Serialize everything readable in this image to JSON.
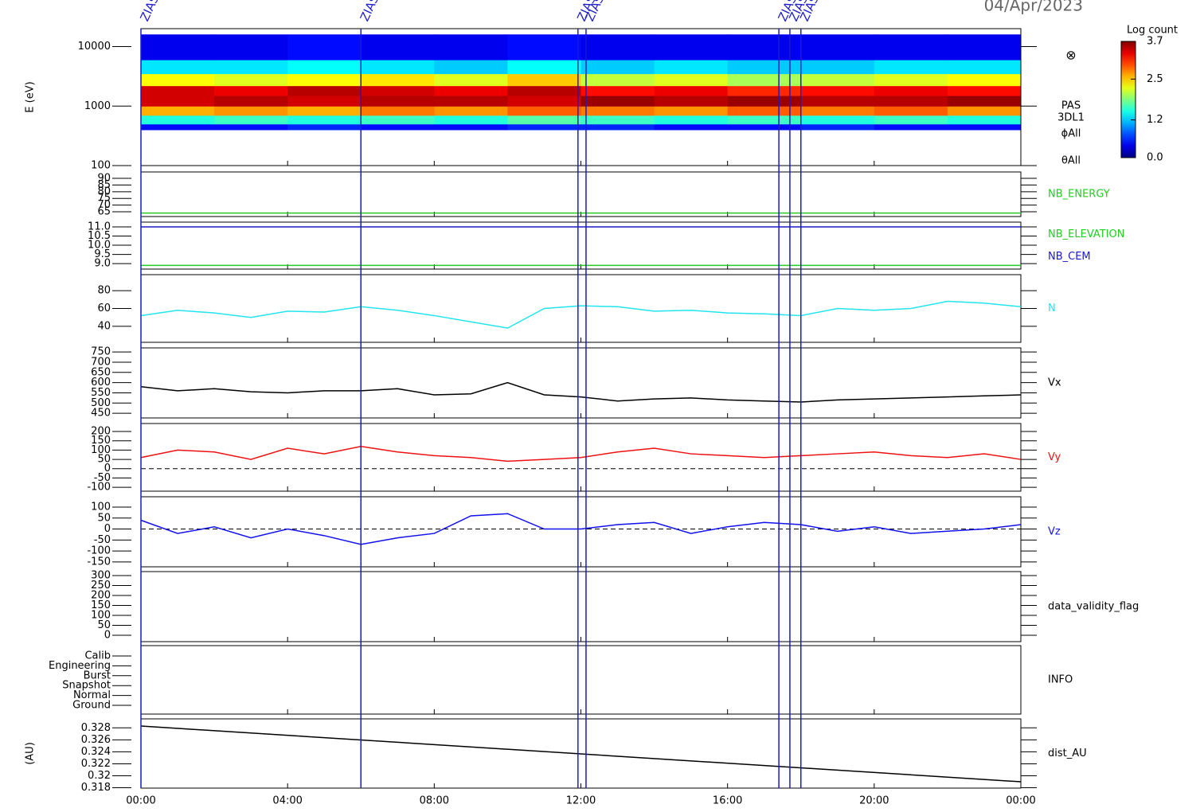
{
  "chart_data": [
    {
      "type": "heatmap",
      "date": "04/Apr/2023",
      "ylabel": "E (eV)",
      "log_y": true,
      "xlim": [
        0,
        24
      ],
      "ylim": [
        100,
        20000
      ],
      "yticks": [
        100,
        1000,
        10000
      ],
      "x_edges": [
        0,
        2,
        4,
        6,
        8,
        10,
        12,
        14,
        16,
        18,
        20,
        22,
        24
      ],
      "y_edges": [
        400,
        500,
        700,
        1000,
        1500,
        2200,
        3500,
        6000,
        16000
      ],
      "z": [
        [
          0.5,
          0.5,
          0.6,
          0.5,
          0.5,
          0.6,
          0.6,
          0.5,
          0.5,
          0.6,
          0.5,
          0.5
        ],
        [
          1.5,
          1.6,
          1.5,
          1.6,
          1.5,
          1.7,
          1.6,
          1.5,
          1.6,
          1.5,
          1.6,
          1.5
        ],
        [
          2.6,
          2.7,
          2.6,
          2.8,
          2.7,
          2.9,
          2.8,
          2.7,
          2.9,
          2.8,
          2.9,
          2.7
        ],
        [
          3.4,
          3.5,
          3.4,
          3.5,
          3.5,
          3.4,
          3.6,
          3.5,
          3.6,
          3.5,
          3.5,
          3.6
        ],
        [
          3.4,
          3.3,
          3.5,
          3.4,
          3.3,
          3.5,
          3.2,
          3.3,
          3.1,
          3.2,
          3.3,
          3.2
        ],
        [
          2.3,
          2.2,
          2.3,
          2.4,
          2.2,
          2.5,
          2.1,
          2.2,
          2.0,
          2.1,
          2.2,
          2.3
        ],
        [
          1.3,
          1.3,
          1.4,
          1.3,
          1.2,
          1.4,
          1.2,
          1.3,
          1.2,
          1.2,
          1.3,
          1.3
        ],
        [
          0.4,
          0.4,
          0.5,
          0.4,
          0.4,
          0.5,
          0.4,
          0.4,
          0.4,
          0.4,
          0.4,
          0.4
        ]
      ],
      "colorbar": {
        "label": "Log count",
        "zlim": [
          0,
          3.7
        ],
        "ticks": [
          {
            "value": 0,
            "label": "0.0"
          },
          1.2,
          2.5,
          3.7
        ]
      },
      "symbol": "⊗",
      "right_labels": [
        "PAS",
        "3DL1",
        "ϕAll",
        "θAll"
      ],
      "annotations": [
        {
          "x": 0,
          "label": "ZIAS"
        },
        {
          "x": 6.0,
          "label": "ZIAS"
        },
        {
          "x": 11.92,
          "label": "ZIAS"
        },
        {
          "x": 12.14,
          "label": "ZIAS"
        },
        {
          "x": 17.4,
          "label": "ZIAS"
        },
        {
          "x": 17.7,
          "label": "ZIAS"
        },
        {
          "x": 18.0,
          "label": "ZIAS"
        }
      ]
    },
    {
      "type": "line",
      "xlim": [
        0,
        24
      ],
      "ylim": [
        61.4,
        94.8
      ],
      "yticks": [
        65,
        70,
        75,
        80,
        85,
        90
      ],
      "x": [
        0,
        24
      ],
      "series": [
        {
          "name": "NB_ENERGY",
          "color": "#22cc22",
          "values": [
            64,
            64
          ]
        }
      ]
    },
    {
      "type": "line",
      "xlim": [
        0,
        24
      ],
      "ylim": [
        8.7,
        11.26
      ],
      "yticks": [
        {
          "value": 9,
          "label": "9.0"
        },
        9.5,
        {
          "value": 10,
          "label": "10.0"
        },
        10.5,
        {
          "value": 11,
          "label": "11.0"
        }
      ],
      "x": [
        0,
        24
      ],
      "series": [
        {
          "name": "NB_ELEVATION",
          "color": "#22cc22",
          "values": [
            8.9,
            8.9
          ]
        },
        {
          "name": "NB_CEM",
          "color": "#1a1acc",
          "values": [
            11.0,
            11.0
          ]
        }
      ]
    },
    {
      "type": "line",
      "xlim": [
        0,
        24
      ],
      "ylim": [
        22,
        98
      ],
      "yticks": [
        40,
        60,
        80
      ],
      "x": [
        0,
        1,
        2,
        3,
        4,
        5,
        6,
        7,
        8,
        9,
        10,
        11,
        12,
        13,
        14,
        15,
        16,
        17,
        18,
        19,
        20,
        21,
        22,
        23,
        24
      ],
      "series": [
        {
          "name": "N",
          "color": "#22e5ee",
          "values": [
            52,
            58,
            55,
            50,
            57,
            56,
            62,
            58,
            52,
            45,
            38,
            60,
            63,
            62,
            57,
            58,
            55,
            54,
            52,
            60,
            58,
            60,
            68,
            66,
            62
          ]
        }
      ]
    },
    {
      "type": "line",
      "xlim": [
        0,
        24
      ],
      "ylim": [
        427,
        770
      ],
      "yticks": [
        450,
        500,
        550,
        600,
        650,
        700,
        750
      ],
      "x": [
        0,
        1,
        2,
        3,
        4,
        5,
        6,
        7,
        8,
        9,
        10,
        11,
        12,
        13,
        14,
        15,
        16,
        17,
        18,
        19,
        20,
        21,
        22,
        23,
        24
      ],
      "series": [
        {
          "name": "Vx",
          "color": "#000000",
          "values": [
            580,
            560,
            570,
            555,
            550,
            560,
            560,
            570,
            540,
            545,
            600,
            540,
            530,
            510,
            520,
            525,
            515,
            510,
            505,
            515,
            520,
            525,
            530,
            535,
            540
          ]
        }
      ]
    },
    {
      "type": "line",
      "xlim": [
        0,
        24
      ],
      "ylim": [
        -121,
        243
      ],
      "yticks": [
        -100,
        -50,
        0,
        50,
        100,
        150,
        200
      ],
      "zero_line": true,
      "x": [
        0,
        1,
        2,
        3,
        4,
        5,
        6,
        7,
        8,
        9,
        10,
        11,
        12,
        13,
        14,
        15,
        16,
        17,
        18,
        19,
        20,
        21,
        22,
        23,
        24
      ],
      "series": [
        {
          "name": "Vy",
          "color": "#ee1111",
          "values": [
            60,
            100,
            90,
            50,
            110,
            80,
            120,
            90,
            70,
            60,
            40,
            50,
            60,
            90,
            110,
            80,
            70,
            60,
            70,
            80,
            90,
            70,
            60,
            80,
            50
          ]
        }
      ]
    },
    {
      "type": "line",
      "xlim": [
        0,
        24
      ],
      "ylim": [
        -172,
        147
      ],
      "yticks": [
        -150,
        -100,
        -50,
        0,
        50,
        100
      ],
      "zero_line": true,
      "x": [
        0,
        1,
        2,
        3,
        4,
        5,
        6,
        7,
        8,
        9,
        10,
        11,
        12,
        13,
        14,
        15,
        16,
        17,
        18,
        19,
        20,
        21,
        22,
        23,
        24
      ],
      "series": [
        {
          "name": "Vz",
          "color": "#1111ee",
          "values": [
            40,
            -20,
            10,
            -40,
            0,
            -30,
            -70,
            -40,
            -20,
            60,
            70,
            0,
            0,
            20,
            30,
            -20,
            10,
            30,
            20,
            -10,
            10,
            -20,
            -10,
            0,
            20
          ]
        }
      ]
    },
    {
      "type": "line",
      "xlim": [
        0,
        24
      ],
      "ylim": [
        -32,
        320
      ],
      "yticks": [
        0,
        50,
        100,
        150,
        200,
        250,
        300
      ],
      "right_label": "data_validity_flag"
    },
    {
      "type": "line",
      "xlim": [
        0,
        24
      ],
      "ycategories": [
        "Calib",
        "Engineering",
        "Burst",
        "Snapshot",
        "Normal",
        "Ground"
      ],
      "right_label": "INFO"
    },
    {
      "type": "line",
      "xlim": [
        0,
        24
      ],
      "ylim": [
        0.31794,
        0.3295
      ],
      "yticks": [
        0.318,
        0.32,
        0.322,
        0.324,
        0.326,
        0.328
      ],
      "ylabel": "(AU)",
      "xticks": [
        {
          "value": 0,
          "label": "00:00"
        },
        {
          "value": 4,
          "label": "04:00"
        },
        {
          "value": 8,
          "label": "08:00"
        },
        {
          "value": 12,
          "label": "12:00"
        },
        {
          "value": 16,
          "label": "16:00"
        },
        {
          "value": 20,
          "label": "20:00"
        },
        {
          "value": 24,
          "label": "00:00"
        }
      ],
      "x": [
        0,
        24
      ],
      "series": [
        {
          "name": "dist_AU",
          "color": "#000000",
          "values": [
            0.3283,
            0.319
          ]
        }
      ]
    }
  ]
}
